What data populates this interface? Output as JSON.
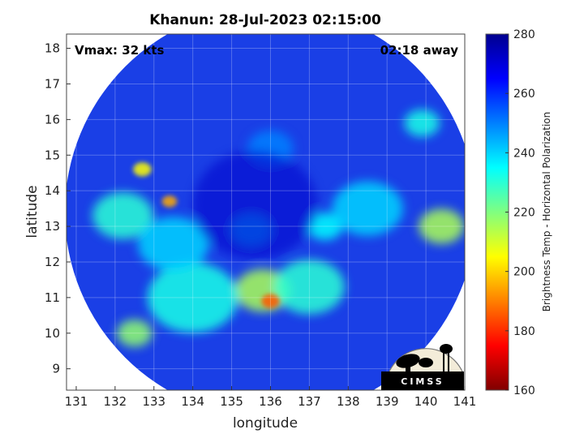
{
  "chart_data": {
    "type": "heatmap",
    "title": "Khanun: 28-Jul-2023 02:15:00",
    "xlabel": "longitude",
    "ylabel": "latitude",
    "xlim": [
      130.75,
      141
    ],
    "ylim": [
      8.4,
      18.4
    ],
    "xticks": [
      "131",
      "132",
      "133",
      "134",
      "135",
      "136",
      "137",
      "138",
      "139",
      "140",
      "141"
    ],
    "yticks": [
      "9",
      "10",
      "11",
      "12",
      "13",
      "14",
      "15",
      "16",
      "17",
      "18"
    ],
    "grid": true,
    "annotations": {
      "vmax": "Vmax: 32 kts",
      "away": "02:18 away"
    },
    "colorbar": {
      "label": "Brightness Temp - Horizontal Polarization",
      "range": [
        160,
        280
      ],
      "ticks": [
        "160",
        "180",
        "200",
        "220",
        "240",
        "260",
        "280"
      ]
    },
    "swath_center": [
      136.0,
      13.4
    ],
    "features": [
      {
        "lon": 136.0,
        "lat": 10.9,
        "tb": 185,
        "r": 0.18
      },
      {
        "lon": 135.8,
        "lat": 11.2,
        "tb": 215,
        "r": 0.55
      },
      {
        "lon": 133.4,
        "lat": 13.7,
        "tb": 195,
        "r": 0.15
      },
      {
        "lon": 132.7,
        "lat": 14.6,
        "tb": 205,
        "r": 0.18
      },
      {
        "lon": 140.4,
        "lat": 13.0,
        "tb": 215,
        "r": 0.45
      },
      {
        "lon": 132.2,
        "lat": 13.3,
        "tb": 230,
        "r": 0.6
      },
      {
        "lon": 132.5,
        "lat": 10.0,
        "tb": 218,
        "r": 0.35
      },
      {
        "lon": 134.0,
        "lat": 11.0,
        "tb": 232,
        "r": 0.9
      },
      {
        "lon": 137.0,
        "lat": 11.3,
        "tb": 230,
        "r": 0.7
      },
      {
        "lon": 137.4,
        "lat": 13.0,
        "tb": 235,
        "r": 0.35
      },
      {
        "lon": 139.9,
        "lat": 15.9,
        "tb": 232,
        "r": 0.35
      },
      {
        "lon": 138.5,
        "lat": 13.5,
        "tb": 240,
        "r": 0.7
      },
      {
        "lon": 133.5,
        "lat": 12.5,
        "tb": 240,
        "r": 0.7
      },
      {
        "lon": 135.5,
        "lat": 12.9,
        "tb": 245,
        "r": 0.4
      },
      {
        "lon": 136.0,
        "lat": 15.2,
        "tb": 250,
        "r": 0.45
      }
    ],
    "logo": "CIMSS"
  }
}
